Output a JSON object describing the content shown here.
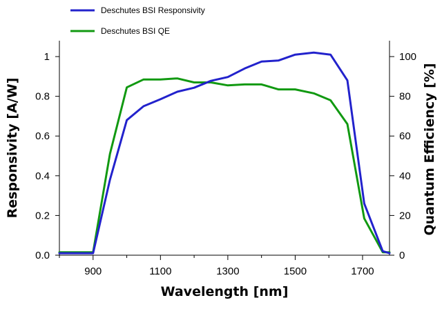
{
  "chart_data": {
    "type": "line",
    "xlabel": "Wavelength [nm]",
    "ylabel": "Responsivity [A/W]",
    "y2label": "Quantum Efficiency [%]",
    "xlim": [
      800,
      1780
    ],
    "ylim": [
      0,
      1.08
    ],
    "y2lim": [
      0,
      108
    ],
    "xticks": [
      900,
      1100,
      1300,
      1500,
      1700
    ],
    "yticks": [
      0.0,
      0.2,
      0.4,
      0.6,
      0.8,
      1.0
    ],
    "ytick_labels": [
      "0.0",
      "0.2",
      "0.4",
      "0.6",
      "0.8",
      "1"
    ],
    "y2ticks": [
      0,
      20,
      40,
      60,
      80,
      100
    ],
    "legend_position": "top-left",
    "series": [
      {
        "name": "Deschutes BSI Responsivity",
        "color": "#2222cc",
        "axis": "left",
        "x": [
          800,
          900,
          950,
          1000,
          1050,
          1100,
          1150,
          1200,
          1250,
          1300,
          1350,
          1400,
          1450,
          1500,
          1555,
          1605,
          1655,
          1705,
          1760,
          1780
        ],
        "y": [
          0.01,
          0.01,
          0.38,
          0.68,
          0.75,
          0.785,
          0.823,
          0.843,
          0.878,
          0.897,
          0.94,
          0.975,
          0.98,
          1.01,
          1.02,
          1.01,
          0.88,
          0.26,
          0.02,
          0.01
        ]
      },
      {
        "name": "Deschutes BSI QE",
        "color": "#119911",
        "axis": "right",
        "x": [
          800,
          900,
          950,
          1000,
          1050,
          1100,
          1150,
          1200,
          1250,
          1300,
          1350,
          1400,
          1450,
          1500,
          1555,
          1605,
          1655,
          1705,
          1760,
          1780
        ],
        "y": [
          1.5,
          1.5,
          51,
          84.5,
          88.5,
          88.5,
          89,
          87,
          87,
          85.5,
          86,
          86,
          83.5,
          83.5,
          81.5,
          78,
          66,
          18.5,
          1.5,
          1.5
        ]
      }
    ]
  }
}
